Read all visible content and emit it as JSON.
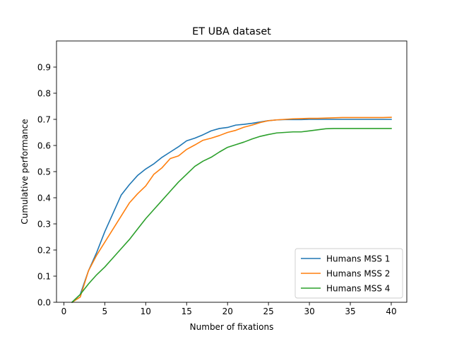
{
  "chart_data": {
    "type": "line",
    "title": "ET UBA dataset",
    "xlabel": "Number of fixations",
    "ylabel": "Cumulative performance",
    "xlim": [
      -0.9,
      41.9
    ],
    "ylim": [
      0,
      1.0
    ],
    "xticks": [
      0,
      5,
      10,
      15,
      20,
      25,
      30,
      35,
      40
    ],
    "yticks": [
      0.0,
      0.1,
      0.2,
      0.3,
      0.4,
      0.5,
      0.6,
      0.7,
      0.8,
      0.9
    ],
    "grid": false,
    "legend_position": "lower-right",
    "x": [
      1,
      2,
      3,
      4,
      5,
      6,
      7,
      8,
      9,
      10,
      11,
      12,
      13,
      14,
      15,
      16,
      17,
      18,
      19,
      20,
      21,
      22,
      23,
      24,
      25,
      26,
      27,
      28,
      29,
      30,
      31,
      32,
      33,
      34,
      35,
      36,
      37,
      38,
      39,
      40
    ],
    "series": [
      {
        "name": "Humans MSS 1",
        "color": "#1f77b4",
        "values": [
          0.0,
          0.03,
          0.12,
          0.19,
          0.27,
          0.34,
          0.41,
          0.45,
          0.485,
          0.51,
          0.53,
          0.555,
          0.575,
          0.595,
          0.618,
          0.628,
          0.641,
          0.656,
          0.665,
          0.669,
          0.678,
          0.681,
          0.685,
          0.69,
          0.695,
          0.698,
          0.699,
          0.699,
          0.699,
          0.7,
          0.7,
          0.7,
          0.7,
          0.7,
          0.7,
          0.7,
          0.7,
          0.7,
          0.7,
          0.7
        ]
      },
      {
        "name": "Humans MSS 2",
        "color": "#ff7f0e",
        "values": [
          0.0,
          0.02,
          0.12,
          0.18,
          0.23,
          0.28,
          0.33,
          0.38,
          0.415,
          0.445,
          0.49,
          0.515,
          0.55,
          0.56,
          0.585,
          0.602,
          0.62,
          0.628,
          0.638,
          0.65,
          0.658,
          0.67,
          0.678,
          0.688,
          0.695,
          0.698,
          0.7,
          0.702,
          0.703,
          0.704,
          0.704,
          0.705,
          0.706,
          0.707,
          0.707,
          0.707,
          0.707,
          0.707,
          0.707,
          0.708
        ]
      },
      {
        "name": "Humans MSS 4",
        "color": "#2ca02c",
        "values": [
          0.0,
          0.03,
          0.07,
          0.105,
          0.135,
          0.17,
          0.205,
          0.24,
          0.28,
          0.32,
          0.355,
          0.39,
          0.425,
          0.46,
          0.49,
          0.52,
          0.54,
          0.555,
          0.575,
          0.593,
          0.603,
          0.613,
          0.625,
          0.635,
          0.642,
          0.648,
          0.65,
          0.652,
          0.652,
          0.656,
          0.66,
          0.664,
          0.665,
          0.665,
          0.665,
          0.665,
          0.665,
          0.665,
          0.665,
          0.665
        ]
      }
    ]
  }
}
